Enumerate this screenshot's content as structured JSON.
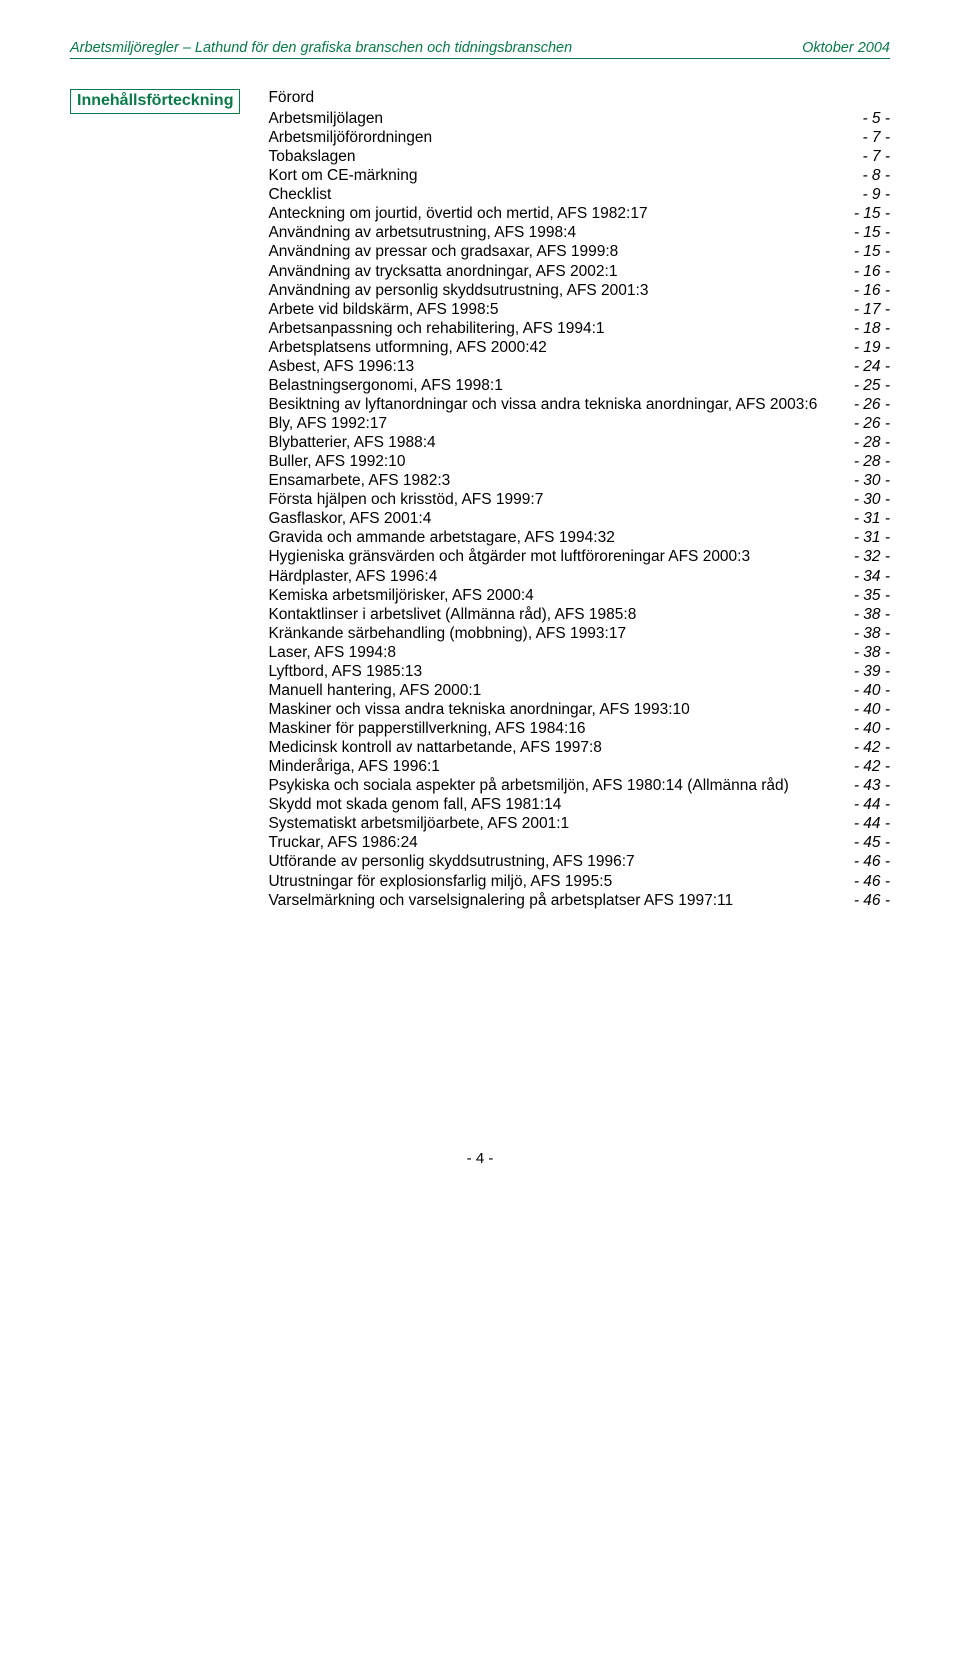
{
  "colors": {
    "accent": "#0a7a4a",
    "text": "#000000",
    "background": "#ffffff"
  },
  "fontsize": {
    "header": 14.5,
    "sidebar": 16,
    "body": 15.5,
    "footer": 15
  },
  "header": {
    "left": "Arbetsmiljöregler – Lathund för den grafiska branschen och tidningsbranschen",
    "right": "Oktober 2004"
  },
  "sidebar": {
    "label": "Innehållsförteckning"
  },
  "toc": {
    "title": "Förord",
    "entries": [
      {
        "label": "Arbetsmiljölagen",
        "page": "- 5 -"
      },
      {
        "label": "Arbetsmiljöförordningen",
        "page": "- 7 -"
      },
      {
        "label": "Tobakslagen",
        "page": "- 7 -"
      },
      {
        "label": "Kort om CE-märkning",
        "page": "- 8 -"
      },
      {
        "label": "Checklist",
        "page": "- 9 -"
      },
      {
        "label": "Anteckning om jourtid, övertid och mertid, AFS 1982:17",
        "page": "- 15 -"
      },
      {
        "label": "Användning av arbetsutrustning, AFS 1998:4",
        "page": "- 15 -"
      },
      {
        "label": "Användning av pressar och gradsaxar, AFS 1999:8",
        "page": "- 15 -"
      },
      {
        "label": "Användning av trycksatta anordningar, AFS 2002:1",
        "page": "- 16 -"
      },
      {
        "label": "Användning av personlig skyddsutrustning, AFS 2001:3",
        "page": "- 16 -"
      },
      {
        "label": "Arbete vid bildskärm, AFS 1998:5",
        "page": "- 17 -"
      },
      {
        "label": "Arbetsanpassning och rehabilitering, AFS 1994:1",
        "page": "- 18 -"
      },
      {
        "label": "Arbetsplatsens utformning, AFS 2000:42",
        "page": "- 19 -"
      },
      {
        "label": "Asbest, AFS 1996:13",
        "page": "- 24 -"
      },
      {
        "label": "Belastningsergonomi, AFS 1998:1",
        "page": "- 25 -"
      },
      {
        "label": "Besiktning av lyftanordningar och vissa andra tekniska anordningar, AFS 2003:6",
        "page": "- 26 -"
      },
      {
        "label": "Bly, AFS 1992:17",
        "page": "- 26 -"
      },
      {
        "label": "Blybatterier, AFS 1988:4",
        "page": "- 28 -"
      },
      {
        "label": "Buller, AFS 1992:10",
        "page": "- 28 -"
      },
      {
        "label": "Ensamarbete, AFS 1982:3",
        "page": "- 30 -"
      },
      {
        "label": "Första hjälpen och krisstöd, AFS 1999:7",
        "page": "- 30 -"
      },
      {
        "label": "Gasflaskor, AFS 2001:4",
        "page": "- 31 -"
      },
      {
        "label": "Gravida och ammande arbetstagare, AFS 1994:32",
        "page": "- 31 -"
      },
      {
        "label": "Hygieniska gränsvärden och åtgärder mot luftföroreningar AFS 2000:3",
        "page": "- 32 -"
      },
      {
        "label": "Härdplaster, AFS 1996:4",
        "page": "- 34 -"
      },
      {
        "label": "Kemiska arbetsmiljörisker, AFS 2000:4",
        "page": "- 35 -"
      },
      {
        "label": "Kontaktlinser i arbetslivet (Allmänna råd), AFS 1985:8",
        "page": "- 38 -"
      },
      {
        "label": "Kränkande särbehandling (mobbning), AFS 1993:17",
        "page": "- 38 -"
      },
      {
        "label": "Laser, AFS 1994:8",
        "page": "- 38 -"
      },
      {
        "label": "Lyftbord, AFS 1985:13",
        "page": "- 39 -"
      },
      {
        "label": "Manuell hantering, AFS 2000:1",
        "page": "- 40 -"
      },
      {
        "label": "Maskiner och vissa andra tekniska anordningar, AFS 1993:10",
        "page": "- 40 -"
      },
      {
        "label": "Maskiner för papperstillverkning, AFS 1984:16",
        "page": "- 40 -"
      },
      {
        "label": "Medicinsk kontroll av nattarbetande, AFS 1997:8",
        "page": "- 42 -"
      },
      {
        "label": "Minderåriga, AFS 1996:1",
        "page": "- 42 -"
      },
      {
        "label": "Psykiska och sociala aspekter på arbetsmiljön, AFS 1980:14 (Allmänna råd)",
        "page": "- 43 -"
      },
      {
        "label": "Skydd mot skada genom fall, AFS 1981:14",
        "page": "- 44 -"
      },
      {
        "label": "Systematiskt arbetsmiljöarbete, AFS 2001:1",
        "page": "- 44 -"
      },
      {
        "label": "Truckar, AFS 1986:24",
        "page": "- 45 -"
      },
      {
        "label": "Utförande av personlig skyddsutrustning, AFS 1996:7",
        "page": "- 46 -"
      },
      {
        "label": "Utrustningar för explosionsfarlig miljö, AFS 1995:5",
        "page": "- 46 -"
      },
      {
        "label": "Varselmärkning och varselsignalering på arbetsplatser AFS 1997:11",
        "page": "- 46 -"
      }
    ]
  },
  "footer": {
    "pageNumber": "- 4 -"
  }
}
